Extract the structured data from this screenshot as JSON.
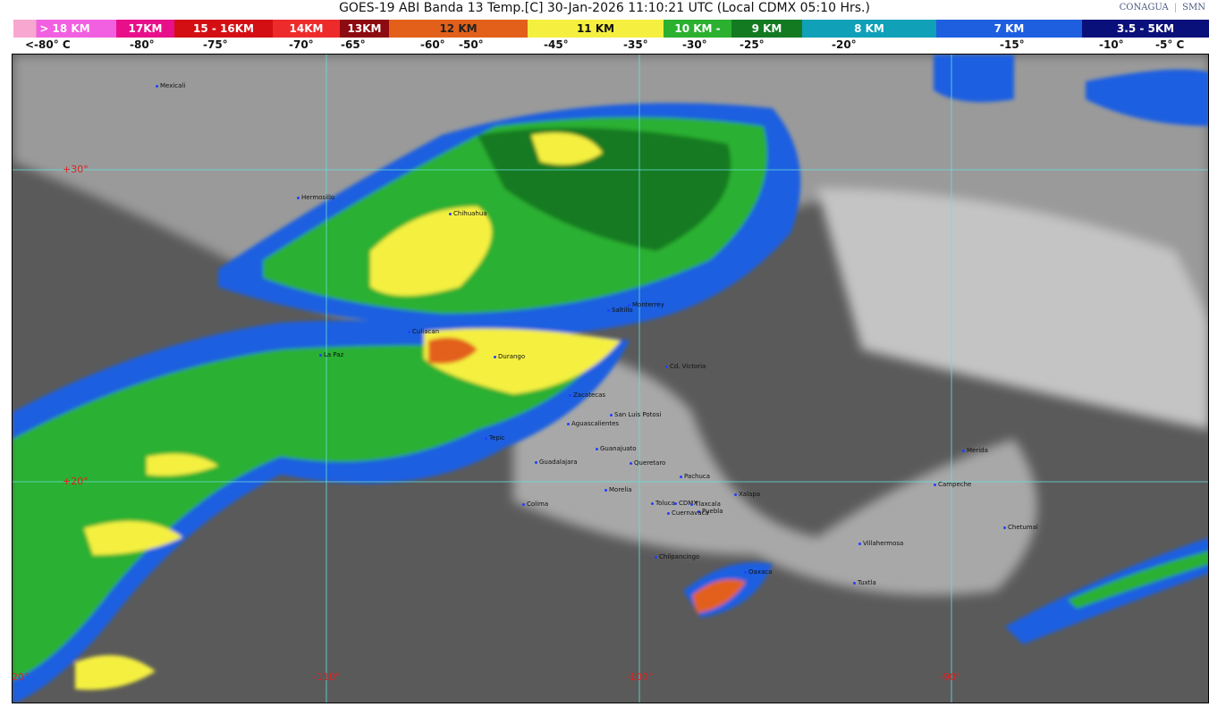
{
  "title": "GOES-19 ABI Banda 13 Temp.[C] 30-Jan-2026 11:10:21 UTC (Local CDMX  05:10 Hrs.)",
  "logos": {
    "conagua": "CONAGUA",
    "smn": "SMN"
  },
  "legend": [
    {
      "label": "> 18 KM",
      "color": "#f060e0"
    },
    {
      "label": "17KM",
      "color": "#e8108a"
    },
    {
      "label": "15 - 16KM",
      "color": "#d40f14"
    },
    {
      "label": "14KM",
      "color": "#ee2b2b"
    },
    {
      "label": "13KM",
      "color": "#8c0a10"
    },
    {
      "label": "12 KM",
      "color": "#e2601a"
    },
    {
      "label": "11 KM",
      "color": "#f5f040"
    },
    {
      "label": "10 KM -",
      "color": "#2cb030"
    },
    {
      "label": "9 KM",
      "color": "#137a22"
    },
    {
      "label": "8 KM",
      "color": "#10a0b8"
    },
    {
      "label": "7 KM",
      "color": "#1e5fe0"
    },
    {
      "label": "3.5 - 5KM",
      "color": "#0a107a"
    }
  ],
  "temps": [
    "<-80° C",
    "-80°",
    "-75°",
    "-70°",
    "-65°",
    "-60°",
    "-50°",
    "-45°",
    "-35°",
    "-30°",
    "-25°",
    "-20°",
    "-15°",
    "-10°",
    "-5°  C"
  ],
  "grid": {
    "lat": [
      "+30°",
      "+20°"
    ],
    "lon": [
      "-120°",
      "-110°",
      "-100°",
      "-90°"
    ]
  },
  "cities": [
    "Mexicali",
    "Hermosillo",
    "Chihuahua",
    "Saltillo",
    "Monterrey",
    "Culiacan",
    "La Paz",
    "Durango",
    "Cd. Victoria",
    "Zacatecas",
    "San Luis Potosi",
    "Aguascalientes",
    "Tepic",
    "Guanajuato",
    "Guadalajara",
    "Queretaro",
    "Pachuca",
    "Morelia",
    "Colima",
    "Toluca",
    "CDMX",
    "Tlaxcala",
    "Puebla",
    "Cuernavaca",
    "Xalapa",
    "Chilpancingo",
    "Oaxaca",
    "Villahermosa",
    "Tuxtla",
    "Merida",
    "Campeche",
    "Chetumal"
  ]
}
